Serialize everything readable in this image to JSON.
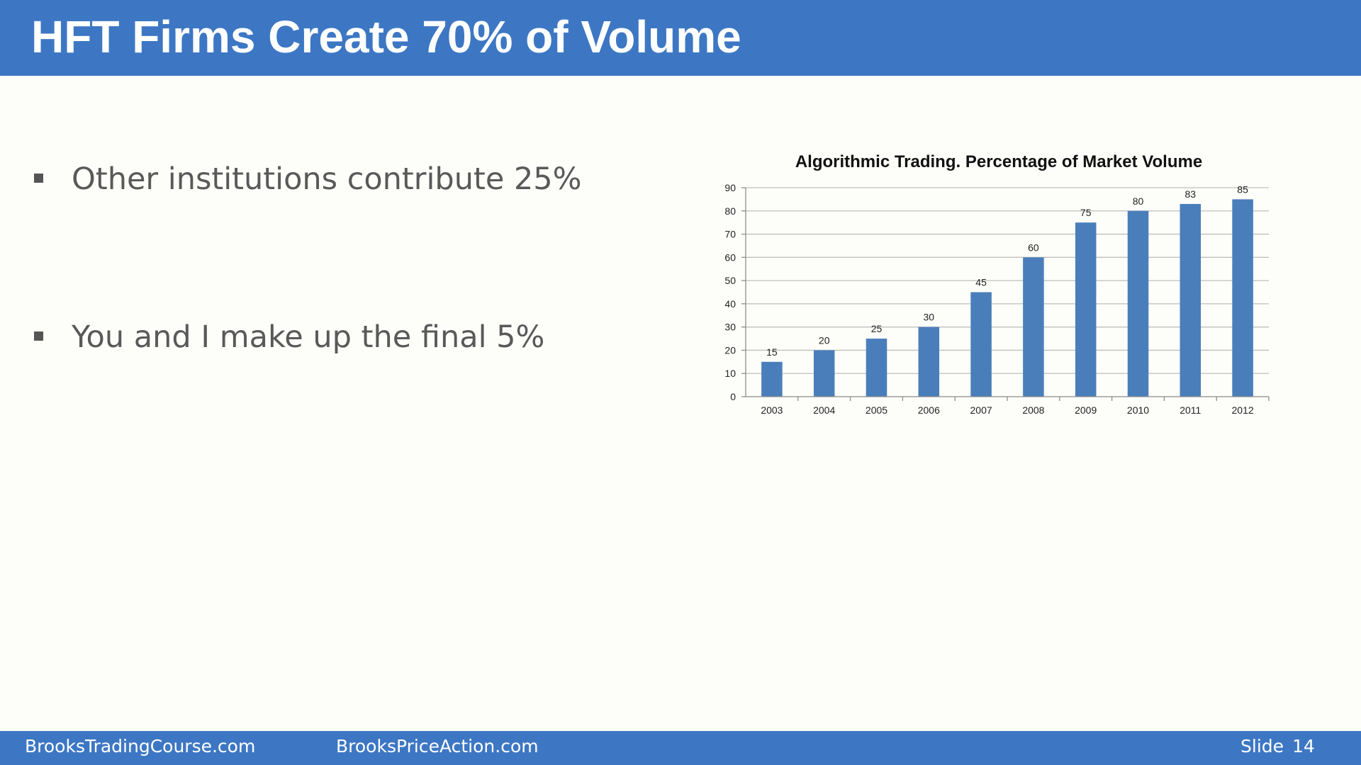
{
  "header": {
    "title": "HFT Firms Create 70% of Volume",
    "background_color": "#3d77c4"
  },
  "bullets": [
    {
      "text": "Other institutions contribute 25%"
    },
    {
      "text": "You and I make up the final 5%"
    }
  ],
  "chart_data": {
    "type": "bar",
    "title": "Algorithmic Trading. Percentage of Market Volume",
    "categories": [
      "2003",
      "2004",
      "2005",
      "2006",
      "2007",
      "2008",
      "2009",
      "2010",
      "2011",
      "2012"
    ],
    "values": [
      15,
      20,
      25,
      30,
      45,
      60,
      75,
      80,
      83,
      85
    ],
    "ylim": [
      0,
      90
    ],
    "yticks": [
      0,
      10,
      20,
      30,
      40,
      50,
      60,
      70,
      80,
      90
    ],
    "xlabel": "",
    "ylabel": "",
    "grid": true,
    "legend": "none",
    "bar_color": "#4a7ebb",
    "data_labels": true
  },
  "footer": {
    "left_site": "BrooksTradingCourse.com",
    "center_site": "BrooksPriceAction.com",
    "slide_label": "Slide",
    "slide_number": "14",
    "background_color": "#3d77c4"
  }
}
